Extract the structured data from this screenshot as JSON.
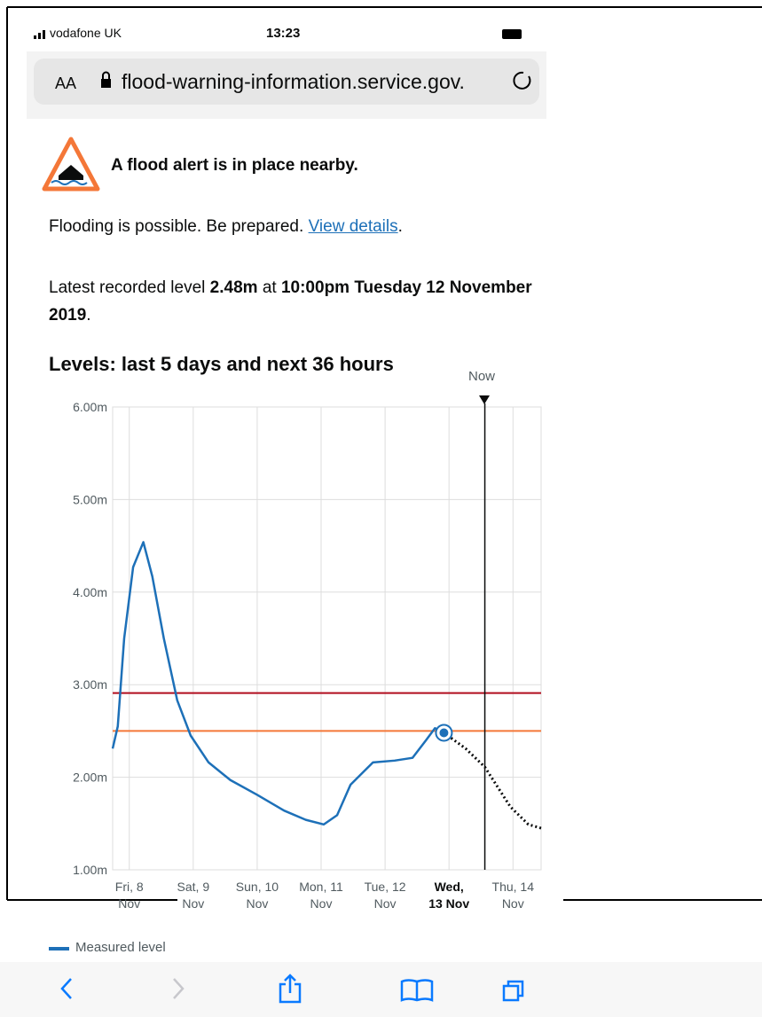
{
  "status_bar": {
    "carrier": "vodafone UK",
    "time": "13:23"
  },
  "address_bar": {
    "text_size": "AA",
    "url": "flood-warning-information.service.gov."
  },
  "alert": {
    "title": "A flood alert is in place nearby."
  },
  "message": {
    "text": "Flooding is possible. Be prepared.",
    "link": "View details",
    "end": "."
  },
  "latest": {
    "prefix": "Latest recorded level",
    "level": "2.48m",
    "at": "at",
    "when": "10:00pm Tuesday 12 November 2019",
    "end": "."
  },
  "chart_data": {
    "type": "line",
    "title": "Levels: last 5 days and next 36 hours",
    "now": {
      "label": "Now",
      "x": 13.56
    },
    "xlim": [
      7.74,
      14.44
    ],
    "ylim": [
      1,
      6
    ],
    "xticks": [
      {
        "value": 8,
        "label": "Fri, 8\nNov"
      },
      {
        "value": 9,
        "label": "Sat, 9\nNov"
      },
      {
        "value": 10,
        "label": "Sun, 10\nNov"
      },
      {
        "value": 11,
        "label": "Mon, 11\nNov"
      },
      {
        "value": 12,
        "label": "Tue, 12\nNov"
      },
      {
        "value": 13,
        "label": "Wed,\n13 Nov"
      },
      {
        "value": 14,
        "label": "Thu, 14\nNov"
      }
    ],
    "yticks": [
      {
        "value": 1,
        "label": "1.00m"
      },
      {
        "value": 2,
        "label": "2.00m"
      },
      {
        "value": 3,
        "label": "3.00m"
      },
      {
        "value": 4,
        "label": "4.00m"
      },
      {
        "value": 5,
        "label": "5.00m"
      },
      {
        "value": 6,
        "label": "6.00m"
      }
    ],
    "grid": true,
    "thresholds": [
      {
        "value": 2.91,
        "color": "#b10e1e"
      },
      {
        "value": 2.5,
        "color": "#f47738"
      }
    ],
    "series": [
      {
        "name": "Measured level",
        "color": "#1d70b8",
        "style": "solid",
        "x": [
          7.74,
          7.82,
          7.92,
          8.06,
          8.22,
          8.36,
          8.54,
          8.75,
          8.96,
          9.24,
          9.58,
          10.0,
          10.42,
          10.76,
          11.04,
          11.25,
          11.46,
          11.81,
          12.15,
          12.43,
          12.64,
          12.78,
          12.92
        ],
        "values": [
          2.31,
          2.55,
          3.5,
          4.27,
          4.54,
          4.17,
          3.5,
          2.83,
          2.45,
          2.16,
          1.97,
          1.81,
          1.64,
          1.54,
          1.49,
          1.59,
          1.92,
          2.16,
          2.18,
          2.21,
          2.4,
          2.53,
          2.48
        ]
      },
      {
        "color": "#0b0c0c",
        "style": "dotted",
        "x": [
          12.92,
          13.26,
          13.56,
          13.96,
          14.24,
          14.44
        ],
        "values": [
          2.48,
          2.31,
          2.11,
          1.68,
          1.49,
          1.45
        ]
      }
    ]
  }
}
